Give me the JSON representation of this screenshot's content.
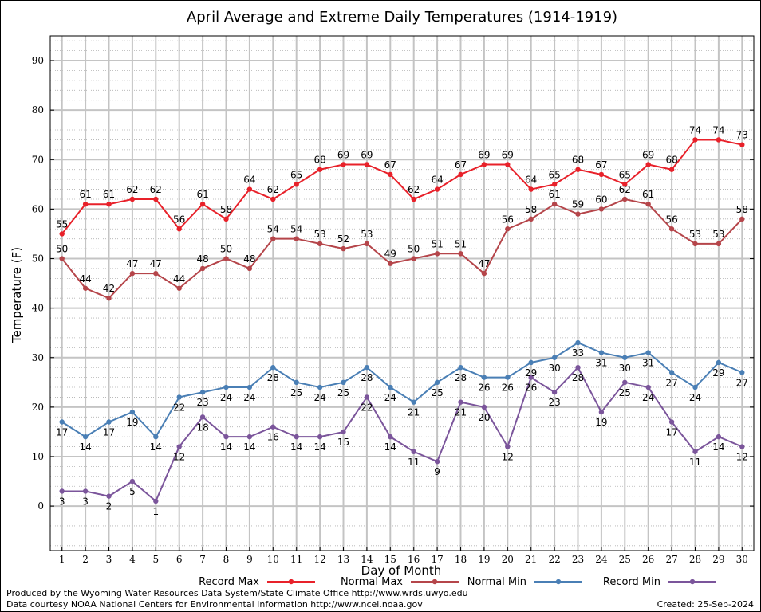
{
  "chart_data": {
    "type": "line",
    "title": "April Average and Extreme Daily Temperatures (1914-1919)",
    "xlabel": "Day of Month",
    "ylabel": "Temperature (F)",
    "x": [
      1,
      2,
      3,
      4,
      5,
      6,
      7,
      8,
      9,
      10,
      11,
      12,
      13,
      14,
      15,
      16,
      17,
      18,
      19,
      20,
      21,
      22,
      23,
      24,
      25,
      26,
      27,
      28,
      29,
      30
    ],
    "xlim": [
      0.5,
      30.5
    ],
    "ylim": [
      -9,
      95
    ],
    "yticks": [
      0,
      10,
      20,
      30,
      40,
      50,
      60,
      70,
      80,
      90
    ],
    "grid": true,
    "legend_position": "bottom",
    "series": [
      {
        "name": "Record Max",
        "color": "#e8212a",
        "label_side": "above",
        "values": [
          55,
          61,
          61,
          62,
          62,
          56,
          61,
          58,
          64,
          62,
          65,
          68,
          69,
          69,
          67,
          62,
          64,
          67,
          69,
          69,
          64,
          65,
          68,
          67,
          65,
          69,
          68,
          74,
          74,
          73
        ]
      },
      {
        "name": "Normal Max",
        "color": "#b5454a",
        "label_side": "above",
        "values": [
          50,
          44,
          42,
          47,
          47,
          44,
          48,
          50,
          48,
          54,
          54,
          53,
          52,
          53,
          49,
          50,
          51,
          51,
          47,
          56,
          58,
          61,
          59,
          60,
          62,
          61,
          56,
          53,
          53,
          58
        ]
      },
      {
        "name": "Normal Min",
        "color": "#4a7fb5",
        "label_side": "below",
        "values": [
          17,
          14,
          17,
          19,
          14,
          22,
          23,
          24,
          24,
          28,
          25,
          24,
          25,
          28,
          24,
          21,
          25,
          28,
          26,
          26,
          29,
          30,
          33,
          31,
          30,
          31,
          27,
          24,
          29,
          27
        ]
      },
      {
        "name": "Record Min",
        "color": "#7b559b",
        "label_side": "below",
        "values": [
          3,
          3,
          2,
          5,
          1,
          12,
          18,
          14,
          14,
          16,
          14,
          14,
          15,
          22,
          14,
          11,
          9,
          21,
          20,
          12,
          26,
          23,
          28,
          19,
          25,
          24,
          17,
          11,
          14,
          12
        ]
      }
    ]
  },
  "footer": {
    "produced_by": "Produced by the Wyoming Water Resources Data System/State Climate Office http://www.wrds.uwyo.edu",
    "data_courtesy": "Data courtesy NOAA National Centers for Environmental Information http://www.ncei.noaa.gov",
    "created": "Created:  25-Sep-2024"
  }
}
